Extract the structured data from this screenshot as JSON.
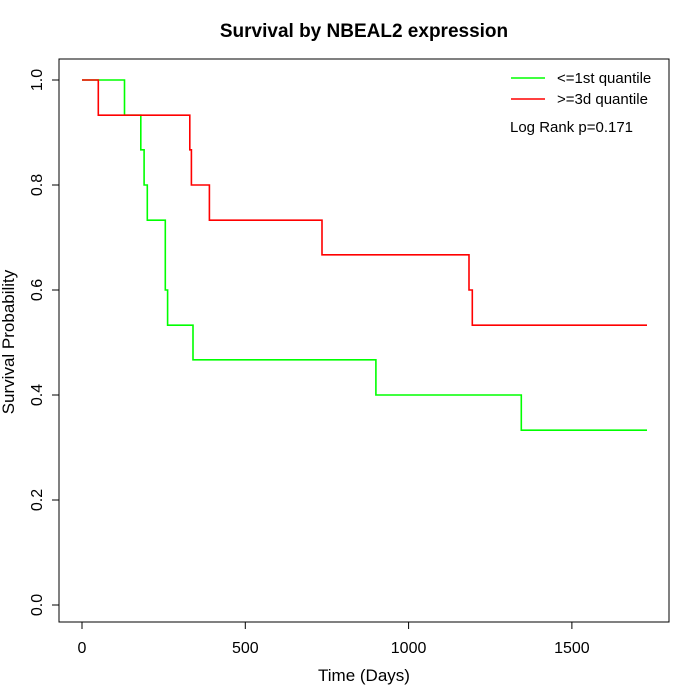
{
  "chart_data": {
    "type": "line",
    "title": "Survival by NBEAL2 expression",
    "xlabel": "Time (Days)",
    "ylabel": "Survival Probability",
    "xlim": [
      0,
      1730
    ],
    "ylim": [
      0,
      1
    ],
    "xticks": [
      0,
      500,
      1000,
      1500
    ],
    "yticks": [
      0.0,
      0.2,
      0.4,
      0.6,
      0.8,
      1.0
    ],
    "xtick_labels": [
      "0",
      "500",
      "1000",
      "1500"
    ],
    "ytick_labels": [
      "0.0",
      "0.2",
      "0.4",
      "0.6",
      "0.8",
      "1.0"
    ],
    "grid": false,
    "legend_position": "top-right",
    "annotation": "Log Rank p=0.171",
    "series": [
      {
        "name": "<=1st quantile",
        "color": "#00ff00",
        "points": [
          [
            0,
            1.0
          ],
          [
            130,
            1.0
          ],
          [
            130,
            0.933
          ],
          [
            180,
            0.933
          ],
          [
            180,
            0.867
          ],
          [
            190,
            0.867
          ],
          [
            190,
            0.8
          ],
          [
            200,
            0.8
          ],
          [
            200,
            0.733
          ],
          [
            255,
            0.733
          ],
          [
            255,
            0.6
          ],
          [
            262,
            0.6
          ],
          [
            262,
            0.533
          ],
          [
            340,
            0.533
          ],
          [
            340,
            0.467
          ],
          [
            900,
            0.467
          ],
          [
            900,
            0.4
          ],
          [
            1345,
            0.4
          ],
          [
            1345,
            0.333
          ],
          [
            1730,
            0.333
          ]
        ]
      },
      {
        "name": ">=3d quantile",
        "color": "#ff0000",
        "points": [
          [
            0,
            1.0
          ],
          [
            50,
            1.0
          ],
          [
            50,
            0.933
          ],
          [
            330,
            0.933
          ],
          [
            330,
            0.867
          ],
          [
            335,
            0.867
          ],
          [
            335,
            0.8
          ],
          [
            390,
            0.8
          ],
          [
            390,
            0.733
          ],
          [
            735,
            0.733
          ],
          [
            735,
            0.667
          ],
          [
            1185,
            0.667
          ],
          [
            1185,
            0.6
          ],
          [
            1195,
            0.6
          ],
          [
            1195,
            0.533
          ],
          [
            1730,
            0.533
          ]
        ]
      }
    ]
  }
}
